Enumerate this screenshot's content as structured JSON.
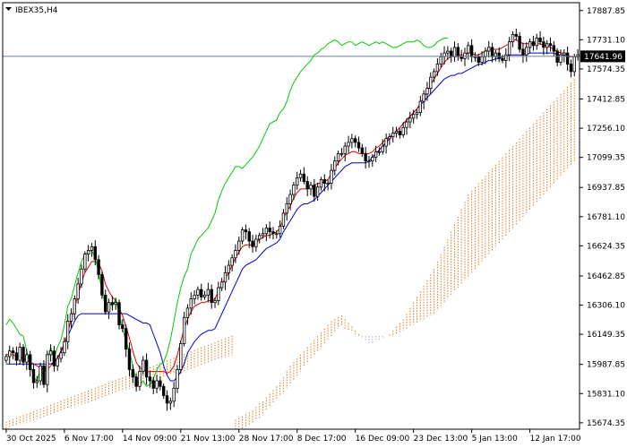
{
  "header": {
    "symbol": "IBEX35,H4"
  },
  "current_price_label": "17641.96",
  "colors": {
    "tenkan": "#e00000",
    "kijun": "#0000cc",
    "chikou": "#00cc00",
    "cloud": "#e07820",
    "cloud_alt": "#a8a8d0",
    "candle": "#000000",
    "badge_bg": "#000000",
    "price_line": "#708090"
  },
  "chart_data": {
    "type": "candlestick",
    "symbol": "IBEX35",
    "timeframe": "H4",
    "indicator": "Ichimoku Kinko Hyo",
    "ylim": [
      15640,
      17930
    ],
    "y_ticks": [
      "17887.85",
      "17731.10",
      "17574.35",
      "17412.85",
      "17256.10",
      "17099.35",
      "16937.85",
      "16781.10",
      "16624.35",
      "16462.85",
      "16306.10",
      "16149.35",
      "15987.85",
      "15831.10",
      "15674.35"
    ],
    "x_ticks": [
      "30 Oct 2025",
      "6 Nov 17:00",
      "14 Nov 09:00",
      "21 Nov 13:00",
      "28 Nov 17:00",
      "8 Dec 17:00",
      "16 Dec 09:00",
      "23 Dec 13:00",
      "5 Jan 13:00",
      "12 Jan 17:00"
    ],
    "x_tick_bars": [
      0,
      17,
      34,
      51,
      68,
      85,
      102,
      119,
      136,
      153
    ],
    "current_price": 17641.96,
    "bars_visible": 168,
    "close": [
      16030,
      16060,
      16050,
      16010,
      16080,
      16000,
      16040,
      15960,
      15890,
      15900,
      15980,
      15880,
      16040,
      16060,
      15980,
      16020,
      16050,
      16110,
      16220,
      16260,
      16340,
      16420,
      16500,
      16580,
      16600,
      16620,
      16550,
      16470,
      16360,
      16270,
      16320,
      16310,
      16320,
      16200,
      16180,
      16070,
      15960,
      15920,
      15870,
      15950,
      16010,
      15920,
      15900,
      15860,
      15900,
      15870,
      15820,
      15780,
      15790,
      15860,
      15960,
      16100,
      16240,
      16290,
      16340,
      16360,
      16390,
      16350,
      16360,
      16390,
      16320,
      16330,
      16400,
      16430,
      16480,
      16520,
      16560,
      16600,
      16650,
      16710,
      16700,
      16650,
      16620,
      16660,
      16680,
      16690,
      16720,
      16700,
      16690,
      16690,
      16730,
      16800,
      16850,
      16900,
      16950,
      16990,
      17010,
      16970,
      16930,
      16950,
      16890,
      16940,
      16980,
      16960,
      16960,
      17030,
      17080,
      17120,
      17120,
      17160,
      17180,
      17200,
      17180,
      17150,
      17120,
      17080,
      17080,
      17100,
      17130,
      17130,
      17160,
      17200,
      17210,
      17230,
      17240,
      17220,
      17260,
      17290,
      17310,
      17330,
      17340,
      17400,
      17440,
      17470,
      17530,
      17560,
      17600,
      17640,
      17660,
      17670,
      17640,
      17690,
      17640,
      17630,
      17660,
      17700,
      17640,
      17640,
      17610,
      17640,
      17670,
      17690,
      17640,
      17660,
      17630,
      17620,
      17650,
      17720,
      17760,
      17750,
      17680,
      17650,
      17690,
      17720,
      17700,
      17740,
      17720,
      17690,
      17710,
      17700,
      17670,
      17610,
      17650,
      17660,
      17600,
      17560,
      17640,
      17650
    ],
    "tenkan_sen": [
      16040,
      16040,
      16040,
      16030,
      16030,
      16020,
      16010,
      16000,
      15990,
      15980,
      15970,
      15960,
      15960,
      15980,
      16000,
      16020,
      16050,
      16100,
      16160,
      16230,
      16290,
      16360,
      16430,
      16480,
      16510,
      16540,
      16540,
      16530,
      16490,
      16420,
      16380,
      16350,
      16330,
      16290,
      16250,
      16190,
      16130,
      16060,
      16000,
      15970,
      15960,
      15950,
      15950,
      15950,
      15950,
      15950,
      15950,
      15940,
      15950,
      15980,
      16040,
      16110,
      16180,
      16230,
      16270,
      16300,
      16310,
      16320,
      16320,
      16330,
      16330,
      16340,
      16380,
      16420,
      16450,
      16480,
      16520,
      16560,
      16590,
      16620,
      16630,
      16630,
      16630,
      16640,
      16660,
      16670,
      16680,
      16680,
      16690,
      16700,
      16720,
      16770,
      16810,
      16840,
      16880,
      16910,
      16930,
      16930,
      16930,
      16940,
      16950,
      16960,
      16960,
      16970,
      16980,
      17010,
      17040,
      17070,
      17090,
      17110,
      17120,
      17130,
      17130,
      17120,
      17120,
      17120,
      17120,
      17130,
      17150,
      17160,
      17180,
      17200,
      17210,
      17220,
      17240,
      17260,
      17280,
      17300,
      17320,
      17340,
      17360,
      17390,
      17420,
      17450,
      17490,
      17520,
      17550,
      17580,
      17610,
      17630,
      17640,
      17650,
      17650,
      17650,
      17650,
      17660,
      17660,
      17650,
      17650,
      17660,
      17670,
      17680,
      17680,
      17680,
      17680,
      17690,
      17700,
      17710,
      17730,
      17730,
      17720,
      17710,
      17710,
      17710,
      17710,
      17710,
      17710,
      17700,
      17700,
      17690,
      17680,
      17670,
      17660,
      17660,
      17650,
      17640,
      17640,
      17640
    ],
    "kijun_sen": [
      15990,
      15990,
      15990,
      15990,
      15990,
      15990,
      15990,
      15990,
      15990,
      15990,
      15990,
      15990,
      15990,
      15990,
      16000,
      16020,
      16060,
      16100,
      16140,
      16180,
      16220,
      16250,
      16260,
      16260,
      16260,
      16260,
      16260,
      16260,
      16260,
      16260,
      16260,
      16260,
      16260,
      16260,
      16260,
      16260,
      16250,
      16240,
      16230,
      16220,
      16210,
      16210,
      16200,
      16150,
      16100,
      16050,
      15980,
      15930,
      15900,
      15900,
      15920,
      15950,
      15990,
      16050,
      16080,
      16110,
      16130,
      16150,
      16160,
      16170,
      16170,
      16180,
      16220,
      16260,
      16300,
      16340,
      16380,
      16420,
      16460,
      16500,
      16520,
      16530,
      16540,
      16550,
      16570,
      16590,
      16610,
      16620,
      16630,
      16640,
      16660,
      16700,
      16730,
      16760,
      16790,
      16820,
      16840,
      16850,
      16850,
      16860,
      16870,
      16890,
      16910,
      16930,
      16950,
      16970,
      16990,
      17010,
      17030,
      17050,
      17060,
      17070,
      17070,
      17070,
      17070,
      17070,
      17080,
      17100,
      17120,
      17140,
      17160,
      17180,
      17200,
      17220,
      17240,
      17260,
      17280,
      17300,
      17320,
      17340,
      17360,
      17380,
      17400,
      17420,
      17440,
      17460,
      17480,
      17500,
      17520,
      17530,
      17540,
      17540,
      17550,
      17550,
      17560,
      17570,
      17580,
      17590,
      17600,
      17600,
      17610,
      17620,
      17620,
      17630,
      17630,
      17640,
      17640,
      17650,
      17650,
      17650,
      17650,
      17650,
      17650,
      17660,
      17660,
      17660,
      17660,
      17660,
      17660,
      17660,
      17660,
      17650,
      17650,
      17650,
      17640,
      17640,
      17640,
      17640
    ],
    "chikou_span": [
      16200,
      16230,
      16210,
      16180,
      16150,
      16140,
      16060,
      15990,
      15920,
      15900,
      15960,
      15920,
      16010,
      16080,
      16020,
      16080,
      16120,
      16200,
      16300,
      16340,
      16410,
      16480,
      16540,
      16580,
      16590,
      16600,
      16560,
      16480,
      16380,
      16300,
      16320,
      16300,
      16340,
      16260,
      16180,
      16110,
      16060,
      15980,
      15900,
      15880,
      15900,
      15870,
      15880,
      15910,
      15960,
      15990,
      16000,
      16050,
      16120,
      16220,
      16320,
      16400,
      16460,
      16500,
      16580,
      16620,
      16660,
      16680,
      16700,
      16720,
      16760,
      16800,
      16870,
      16920,
      16960,
      16990,
      17020,
      17050,
      17050,
      17040,
      17060,
      17080,
      17100,
      17130,
      17160,
      17200,
      17240,
      17280,
      17290,
      17300,
      17340,
      17360,
      17400,
      17460,
      17500,
      17530,
      17560,
      17580,
      17600,
      17620,
      17650,
      17660,
      17680,
      17690,
      17710,
      17720,
      17730,
      17720,
      17700,
      17710,
      17720,
      17720,
      17700,
      17710,
      17720,
      17710,
      17700,
      17710,
      17720,
      17710,
      17720,
      17710,
      17700,
      17690,
      17690,
      17700,
      17710,
      17720,
      17720,
      17720,
      17730,
      17720,
      17700,
      17690,
      17690,
      17700,
      17720,
      17730,
      17740,
      17740
    ],
    "senkou_span_a": [
      15690,
      15700,
      15710,
      15720,
      15730,
      15740,
      15760,
      15780,
      15790,
      15810,
      15830,
      15850,
      15870,
      15890,
      15920,
      15950,
      15980,
      16000,
      16020,
      16040,
      16060,
      16080,
      16100,
      16120,
      16140,
      16160,
      16180,
      16200,
      16220,
      16230,
      16240,
      16250,
      16230,
      16210,
      16190,
      16170,
      16150,
      16130,
      16110,
      16100,
      16100,
      16110,
      16120,
      16130,
      16140,
      16150,
      16170,
      16190,
      16210,
      16230,
      16260,
      16290,
      16320,
      16350,
      16380,
      16410,
      16440,
      16470,
      16500,
      16540,
      16580,
      16620,
      16660,
      16700,
      16740,
      16780,
      16820,
      16860,
      16900,
      16920,
      16940,
      16960,
      16980,
      17000,
      17020,
      17040,
      17060,
      17080,
      17100,
      17120,
      17140,
      17160,
      17180,
      17200,
      17220,
      17240,
      17260,
      17280,
      17300,
      17320,
      17340,
      17360,
      17380,
      17400,
      17420,
      17440,
      17460,
      17480,
      17500,
      17520
    ],
    "senkou_span_b": [
      15620,
      15630,
      15640,
      15650,
      15660,
      15670,
      15690,
      15700,
      15720,
      15740,
      15760,
      15780,
      15800,
      15820,
      15840,
      15860,
      15880,
      15900,
      15920,
      15950,
      15980,
      16000,
      16020,
      16040,
      16060,
      16080,
      16100,
      16120,
      16140,
      16160,
      16180,
      16190,
      16180,
      16170,
      16160,
      16150,
      16140,
      16140,
      16140,
      16140,
      16140,
      16140,
      16140,
      16140,
      16140,
      16140,
      16140,
      16150,
      16160,
      16170,
      16180,
      16190,
      16200,
      16210,
      16220,
      16230,
      16240,
      16250,
      16260,
      16280,
      16300,
      16320,
      16340,
      16360,
      16380,
      16400,
      16420,
      16440,
      16460,
      16480,
      16500,
      16520,
      16540,
      16560,
      16580,
      16600,
      16620,
      16640,
      16660,
      16680,
      16700,
      16720,
      16740,
      16760,
      16780,
      16800,
      16820,
      16840,
      16860,
      16880,
      16900,
      16920,
      16940,
      16960,
      16980,
      17000,
      17020,
      17040,
      17060,
      17080
    ],
    "senkou_start_bar": 67
  }
}
